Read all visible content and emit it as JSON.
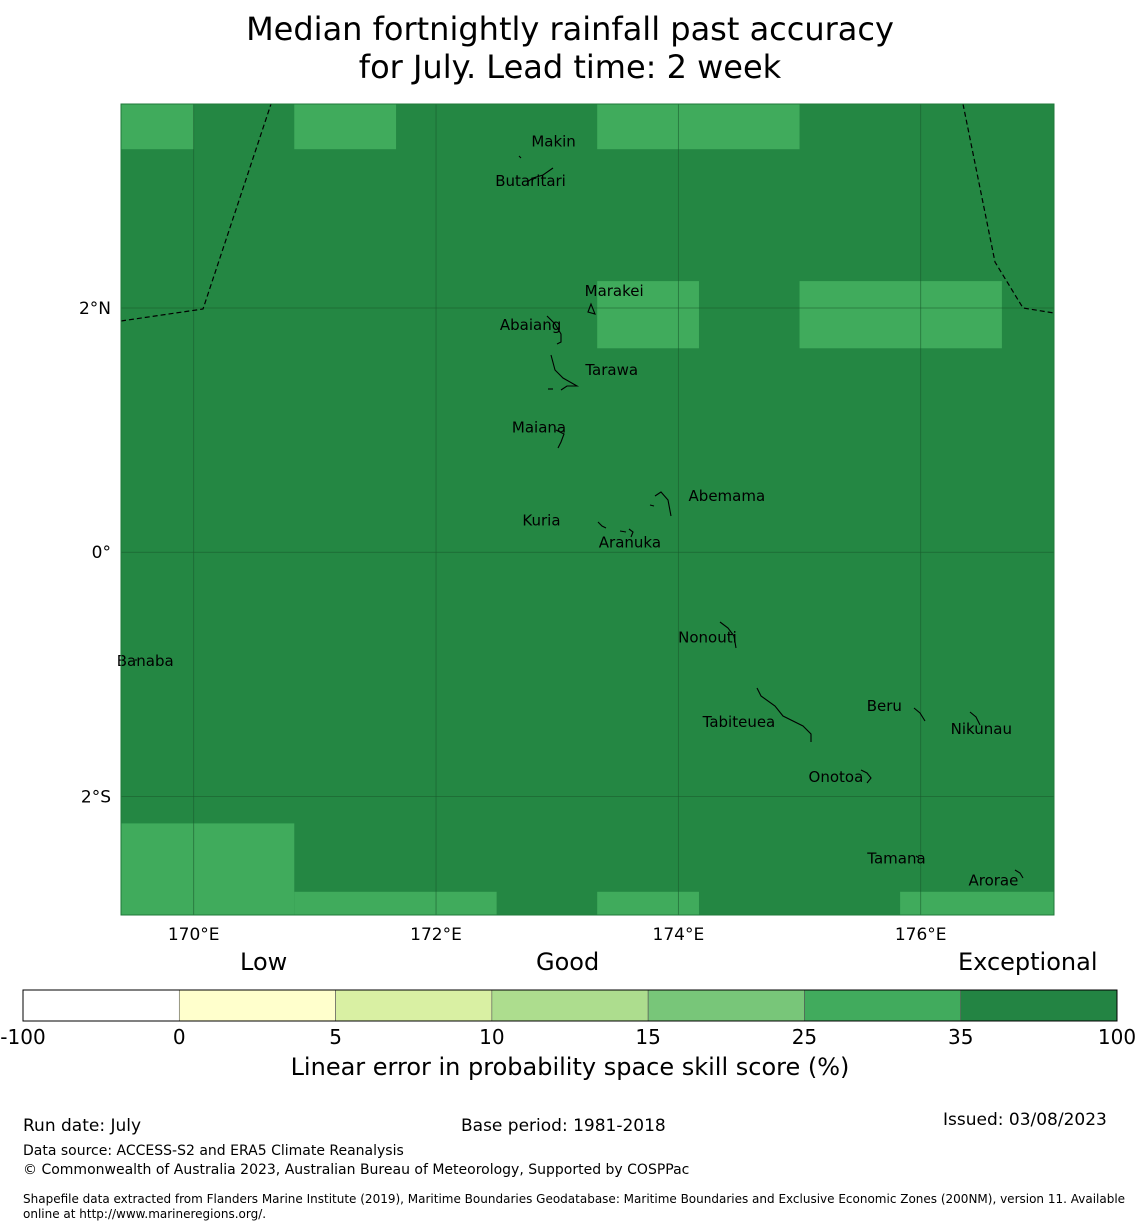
{
  "title": {
    "line1": "Median fortnightly rainfall past accuracy",
    "line2": "for July. Lead time: 2 week"
  },
  "map": {
    "lon_range": [
      169.4,
      177.1
    ],
    "lat_range": [
      -2.97,
      3.67
    ],
    "lon_ticks": [
      {
        "value": 170,
        "label": "170°E"
      },
      {
        "value": 172,
        "label": "172°E"
      },
      {
        "value": 174,
        "label": "174°E"
      },
      {
        "value": 176,
        "label": "176°E"
      }
    ],
    "lat_ticks": [
      {
        "value": 2,
        "label": "2°N"
      },
      {
        "value": 0,
        "label": "0°"
      },
      {
        "value": -2,
        "label": "2°S"
      }
    ],
    "background_class_color": "#248743",
    "lighter_class_color": "#40ab5c",
    "lighter_cells": [
      {
        "lon": [
          169.4,
          170.0
        ],
        "lat": [
          3.3,
          3.67
        ]
      },
      {
        "lon": [
          170.83,
          171.67
        ],
        "lat": [
          3.3,
          3.67
        ]
      },
      {
        "lon": [
          173.33,
          175.0
        ],
        "lat": [
          3.3,
          3.67
        ]
      },
      {
        "lon": [
          173.33,
          174.17
        ],
        "lat": [
          1.67,
          2.22
        ]
      },
      {
        "lon": [
          175.0,
          176.67
        ],
        "lat": [
          1.67,
          2.22
        ]
      },
      {
        "lon": [
          169.4,
          170.83
        ],
        "lat": [
          -2.97,
          -2.22
        ]
      },
      {
        "lon": [
          170.83,
          172.5
        ],
        "lat": [
          -2.97,
          -2.78
        ]
      },
      {
        "lon": [
          173.33,
          174.17
        ],
        "lat": [
          -2.97,
          -2.78
        ]
      },
      {
        "lon": [
          175.83,
          177.1
        ],
        "lat": [
          -2.97,
          -2.78
        ]
      }
    ],
    "islands": [
      {
        "name": "Makin",
        "lon": 172.97,
        "lat": 3.32
      },
      {
        "name": "Butaritari",
        "lon": 172.78,
        "lat": 3.0
      },
      {
        "name": "Marakei",
        "lon": 173.47,
        "lat": 2.1
      },
      {
        "name": "Abaiang",
        "lon": 172.78,
        "lat": 1.82
      },
      {
        "name": "Tarawa",
        "lon": 173.45,
        "lat": 1.45
      },
      {
        "name": "Maiana",
        "lon": 172.85,
        "lat": 0.98
      },
      {
        "name": "Abemama",
        "lon": 174.4,
        "lat": 0.42
      },
      {
        "name": "Kuria",
        "lon": 172.87,
        "lat": 0.22
      },
      {
        "name": "Aranuka",
        "lon": 173.6,
        "lat": 0.04
      },
      {
        "name": "Nonouti",
        "lon": 174.24,
        "lat": -0.74
      },
      {
        "name": "Banaba",
        "lon": 169.6,
        "lat": -0.93
      },
      {
        "name": "Beru",
        "lon": 175.7,
        "lat": -1.3
      },
      {
        "name": "Tabiteuea",
        "lon": 174.5,
        "lat": -1.43
      },
      {
        "name": "Nikunau",
        "lon": 176.5,
        "lat": -1.49
      },
      {
        "name": "Onotoa",
        "lon": 175.3,
        "lat": -1.88
      },
      {
        "name": "Tamana",
        "lon": 175.8,
        "lat": -2.55
      },
      {
        "name": "Arorae",
        "lon": 176.6,
        "lat": -2.73
      }
    ]
  },
  "colorbar": {
    "categories": [
      {
        "label": "Low"
      },
      {
        "label": "Good"
      },
      {
        "label": "Exceptional"
      }
    ],
    "boundaries": [
      "-100",
      "0",
      "5",
      "10",
      "15",
      "25",
      "35",
      "100"
    ],
    "colors": [
      "#ffffff",
      "#ffffcc",
      "#d9f0a3",
      "#addd8e",
      "#78c679",
      "#41ab5d",
      "#238443"
    ],
    "label": "Linear error in probability space skill score (%)"
  },
  "footer": {
    "run_date": "Run date: July",
    "base_period": "Base period: 1981-2018",
    "issued": "Issued: 03/08/2023",
    "data_source": "Data source: ACCESS-S2 and ERA5 Climate Reanalysis",
    "copyright": "© Commonwealth of Australia 2023, Australian Bureau of Meteorology, Supported by COSPPac",
    "shapefile_line1": "Shapefile data extracted from Flanders Marine Institute (2019), Maritime Boundaries Geodatabase: Maritime Boundaries and Exclusive Economic Zones (200NM), version 11. Available",
    "shapefile_line2": "online at http://www.marineregions.org/."
  }
}
